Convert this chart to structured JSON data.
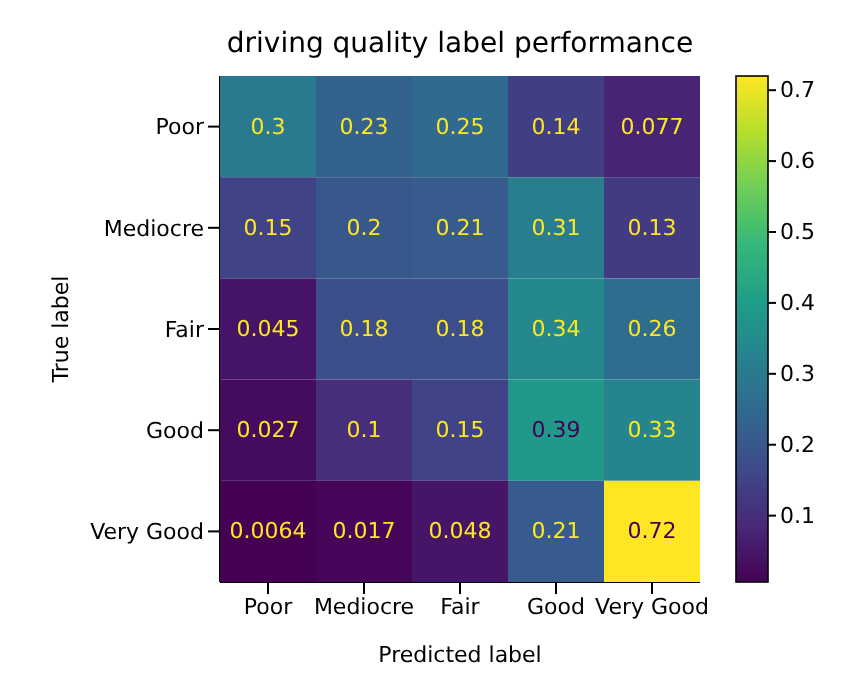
{
  "chart_data": {
    "type": "heatmap",
    "title": "driving quality label performance",
    "xlabel": "Predicted label",
    "ylabel": "True label",
    "categories": [
      "Poor",
      "Mediocre",
      "Fair",
      "Good",
      "Very Good"
    ],
    "y_categories": [
      "Poor",
      "Mediocre",
      "Fair",
      "Good",
      "Very Good"
    ],
    "cells": [
      [
        0.3,
        0.23,
        0.25,
        0.14,
        0.077
      ],
      [
        0.15,
        0.2,
        0.21,
        0.31,
        0.13
      ],
      [
        0.045,
        0.18,
        0.18,
        0.34,
        0.26
      ],
      [
        0.027,
        0.1,
        0.15,
        0.39,
        0.33
      ],
      [
        0.0064,
        0.017,
        0.048,
        0.21,
        0.72
      ]
    ],
    "data_labels": true,
    "clim": [
      0.0064,
      0.72
    ],
    "cticks": [
      0.1,
      0.2,
      0.3,
      0.4,
      0.5,
      0.6,
      0.7
    ]
  }
}
